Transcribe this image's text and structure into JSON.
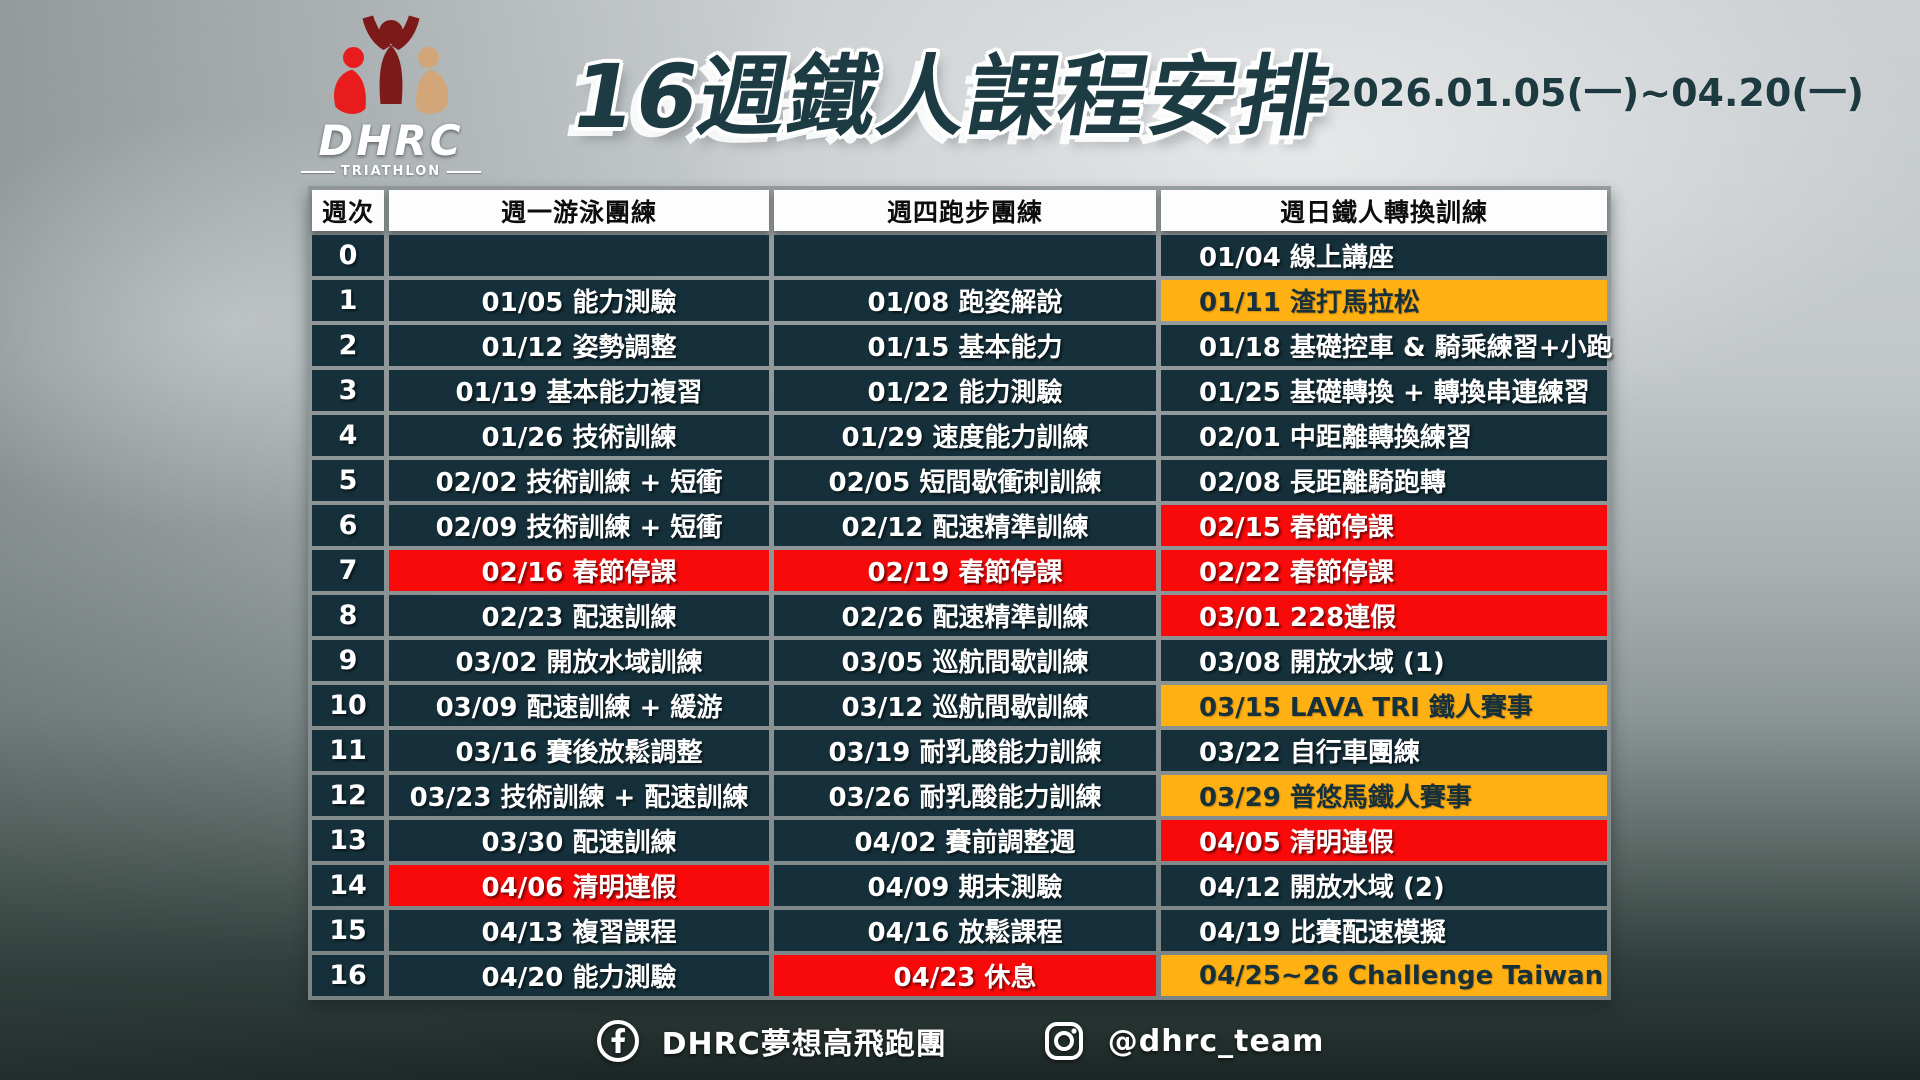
{
  "header": {
    "logo": {
      "brand": "DHRC",
      "tagline": "TRIATHLON"
    },
    "title": "16週鐵人課程安排",
    "date_range": "2026.01.05(一)~04.20(一)"
  },
  "table": {
    "columns": [
      "週次",
      "週一游泳團練",
      "週四跑步團練",
      "週日鐵人轉換訓練"
    ],
    "rows": [
      {
        "week": "0",
        "cells": [
          {
            "text": "",
            "type": "normal"
          },
          {
            "text": "",
            "type": "normal"
          },
          {
            "text": "01/04 線上講座",
            "type": "normal"
          }
        ]
      },
      {
        "week": "1",
        "cells": [
          {
            "text": "01/05 能力測驗",
            "type": "normal"
          },
          {
            "text": "01/08 跑姿解說",
            "type": "normal"
          },
          {
            "text": "01/11 渣打馬拉松",
            "type": "orange"
          }
        ]
      },
      {
        "week": "2",
        "cells": [
          {
            "text": "01/12 姿勢調整",
            "type": "normal"
          },
          {
            "text": "01/15 基本能力",
            "type": "normal"
          },
          {
            "text": "01/18 基礎控車 & 騎乘練習+小跑",
            "type": "normal"
          }
        ]
      },
      {
        "week": "3",
        "cells": [
          {
            "text": "01/19 基本能力複習",
            "type": "normal"
          },
          {
            "text": "01/22 能力測驗",
            "type": "normal"
          },
          {
            "text": "01/25 基礎轉換 + 轉換串連練習",
            "type": "normal"
          }
        ]
      },
      {
        "week": "4",
        "cells": [
          {
            "text": "01/26 技術訓練",
            "type": "normal"
          },
          {
            "text": "01/29 速度能力訓練",
            "type": "normal"
          },
          {
            "text": "02/01 中距離轉換練習",
            "type": "normal"
          }
        ]
      },
      {
        "week": "5",
        "cells": [
          {
            "text": "02/02 技術訓練 + 短衝",
            "type": "normal"
          },
          {
            "text": "02/05 短間歇衝刺訓練",
            "type": "normal"
          },
          {
            "text": "02/08 長距離騎跑轉",
            "type": "normal"
          }
        ]
      },
      {
        "week": "6",
        "cells": [
          {
            "text": "02/09 技術訓練 + 短衝",
            "type": "normal"
          },
          {
            "text": "02/12 配速精準訓練",
            "type": "normal"
          },
          {
            "text": "02/15 春節停課",
            "type": "red"
          }
        ]
      },
      {
        "week": "7",
        "cells": [
          {
            "text": "02/16 春節停課",
            "type": "red"
          },
          {
            "text": "02/19 春節停課",
            "type": "red"
          },
          {
            "text": "02/22 春節停課",
            "type": "red"
          }
        ]
      },
      {
        "week": "8",
        "cells": [
          {
            "text": "02/23 配速訓練",
            "type": "normal"
          },
          {
            "text": "02/26 配速精準訓練",
            "type": "normal"
          },
          {
            "text": "03/01 228連假",
            "type": "red"
          }
        ]
      },
      {
        "week": "9",
        "cells": [
          {
            "text": "03/02 開放水域訓練",
            "type": "normal"
          },
          {
            "text": "03/05 巡航間歇訓練",
            "type": "normal"
          },
          {
            "text": "03/08 開放水域 (1)",
            "type": "normal"
          }
        ]
      },
      {
        "week": "10",
        "cells": [
          {
            "text": "03/09 配速訓練 + 緩游",
            "type": "normal"
          },
          {
            "text": "03/12 巡航間歇訓練",
            "type": "normal"
          },
          {
            "text": "03/15 LAVA TRI 鐵人賽事",
            "type": "orange"
          }
        ]
      },
      {
        "week": "11",
        "cells": [
          {
            "text": "03/16 賽後放鬆調整",
            "type": "normal"
          },
          {
            "text": "03/19 耐乳酸能力訓練",
            "type": "normal"
          },
          {
            "text": "03/22 自行車團練",
            "type": "normal"
          }
        ]
      },
      {
        "week": "12",
        "cells": [
          {
            "text": "03/23 技術訓練 + 配速訓練",
            "type": "normal"
          },
          {
            "text": "03/26 耐乳酸能力訓練",
            "type": "normal"
          },
          {
            "text": "03/29 普悠馬鐵人賽事",
            "type": "orange"
          }
        ]
      },
      {
        "week": "13",
        "cells": [
          {
            "text": "03/30 配速訓練",
            "type": "normal"
          },
          {
            "text": "04/02 賽前調整週",
            "type": "normal"
          },
          {
            "text": "04/05 清明連假",
            "type": "red"
          }
        ]
      },
      {
        "week": "14",
        "cells": [
          {
            "text": "04/06 清明連假",
            "type": "red"
          },
          {
            "text": "04/09 期末測驗",
            "type": "normal"
          },
          {
            "text": "04/12 開放水域 (2)",
            "type": "normal"
          }
        ]
      },
      {
        "week": "15",
        "cells": [
          {
            "text": "04/13 複習課程",
            "type": "normal"
          },
          {
            "text": "04/16 放鬆課程",
            "type": "normal"
          },
          {
            "text": "04/19 比賽配速模擬",
            "type": "normal"
          }
        ]
      },
      {
        "week": "16",
        "cells": [
          {
            "text": "04/20 能力測驗",
            "type": "normal"
          },
          {
            "text": "04/23 休息",
            "type": "red"
          },
          {
            "text": "04/25~26 Challenge Taiwan",
            "type": "orange"
          }
        ]
      }
    ]
  },
  "footer": {
    "facebook_label": "DHRC夢想高飛跑團",
    "instagram_label": "@dhrc_team"
  },
  "colors": {
    "cell_bg": "#15303a",
    "holiday_red": "#f90a0a",
    "event_orange": "#ffb013",
    "title_teal": "#1d3b42"
  }
}
